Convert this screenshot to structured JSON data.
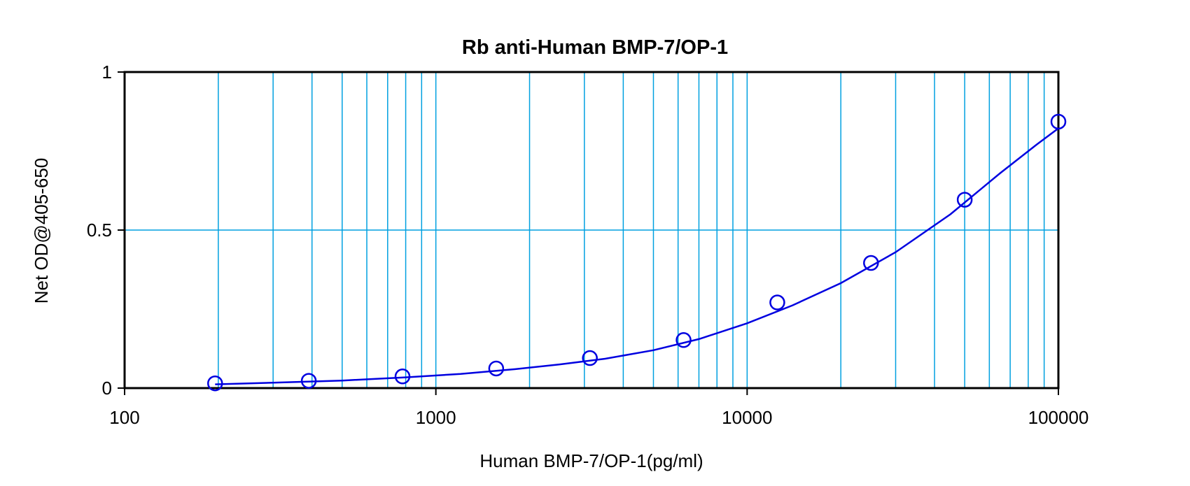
{
  "chart_data": {
    "type": "scatter",
    "title": "Rb anti-Human BMP-7/OP-1",
    "xlabel": "Human BMP-7/OP-1(pg/ml)",
    "ylabel": "Net OD@405-650",
    "x_scale": "log",
    "xlim": [
      100,
      100000
    ],
    "ylim": [
      0,
      1
    ],
    "x_ticks": [
      "100",
      "1000",
      "10000",
      "100000"
    ],
    "y_ticks": [
      "0",
      "0.5",
      "1"
    ],
    "grid": true,
    "legend": "none",
    "series": [
      {
        "points_x": [
          195.3,
          390.6,
          781.3,
          1562.5,
          3125,
          6250,
          12500,
          25000,
          50000,
          100000
        ],
        "points_y": [
          0.015,
          0.023,
          0.037,
          0.062,
          0.095,
          0.152,
          0.271,
          0.396,
          0.596,
          0.843
        ],
        "curve_x": [
          195.3,
          300,
          500,
          800,
          1200,
          1800,
          2500,
          3500,
          5000,
          7000,
          10000,
          14000,
          20000,
          30000,
          45000,
          65000,
          85000,
          100000
        ],
        "curve_y": [
          0.012,
          0.017,
          0.024,
          0.034,
          0.045,
          0.06,
          0.075,
          0.093,
          0.12,
          0.155,
          0.205,
          0.262,
          0.332,
          0.43,
          0.55,
          0.68,
          0.77,
          0.822
        ]
      }
    ],
    "colors": {
      "series": "#0000e0",
      "grid": "#00a0e0",
      "frame": "#000000"
    }
  }
}
